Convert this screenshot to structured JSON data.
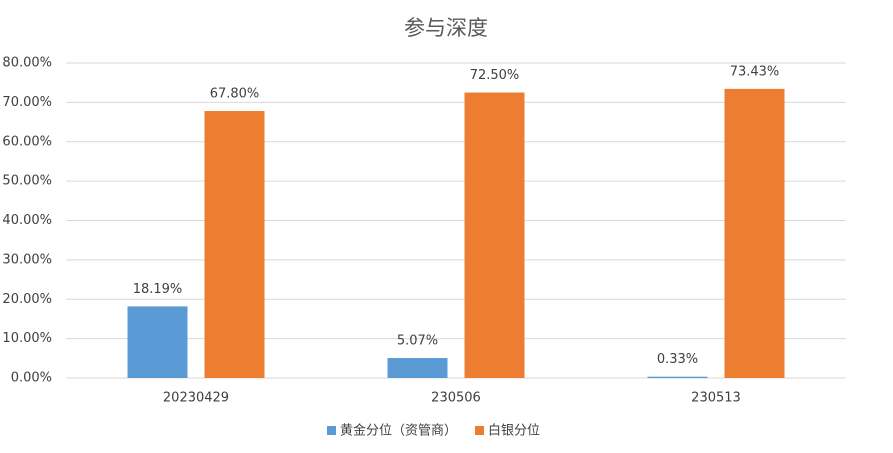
{
  "chart_data": {
    "type": "bar",
    "title": "参与深度",
    "categories": [
      "20230429",
      "230506",
      "230513"
    ],
    "series": [
      {
        "name": "黄金分位（资管商）",
        "color": "#5b9bd5",
        "values": [
          18.19,
          5.07,
          0.33
        ],
        "value_labels": [
          "18.19%",
          "5.07%",
          "0.33%"
        ]
      },
      {
        "name": "白银分位",
        "color": "#ed7d31",
        "values": [
          67.8,
          72.5,
          73.43
        ],
        "value_labels": [
          "67.80%",
          "72.50%",
          "73.43%"
        ]
      }
    ],
    "ylim": [
      0,
      80
    ],
    "yticks": [
      {
        "value": 0,
        "label": "0.00%"
      },
      {
        "value": 10,
        "label": "10.00%"
      },
      {
        "value": 20,
        "label": "20.00%"
      },
      {
        "value": 30,
        "label": "30.00%"
      },
      {
        "value": 40,
        "label": "40.00%"
      },
      {
        "value": 50,
        "label": "50.00%"
      },
      {
        "value": 60,
        "label": "60.00%"
      },
      {
        "value": 70,
        "label": "70.00%"
      },
      {
        "value": 80,
        "label": "80.00%"
      }
    ],
    "grid": true,
    "legend": "bottom"
  }
}
